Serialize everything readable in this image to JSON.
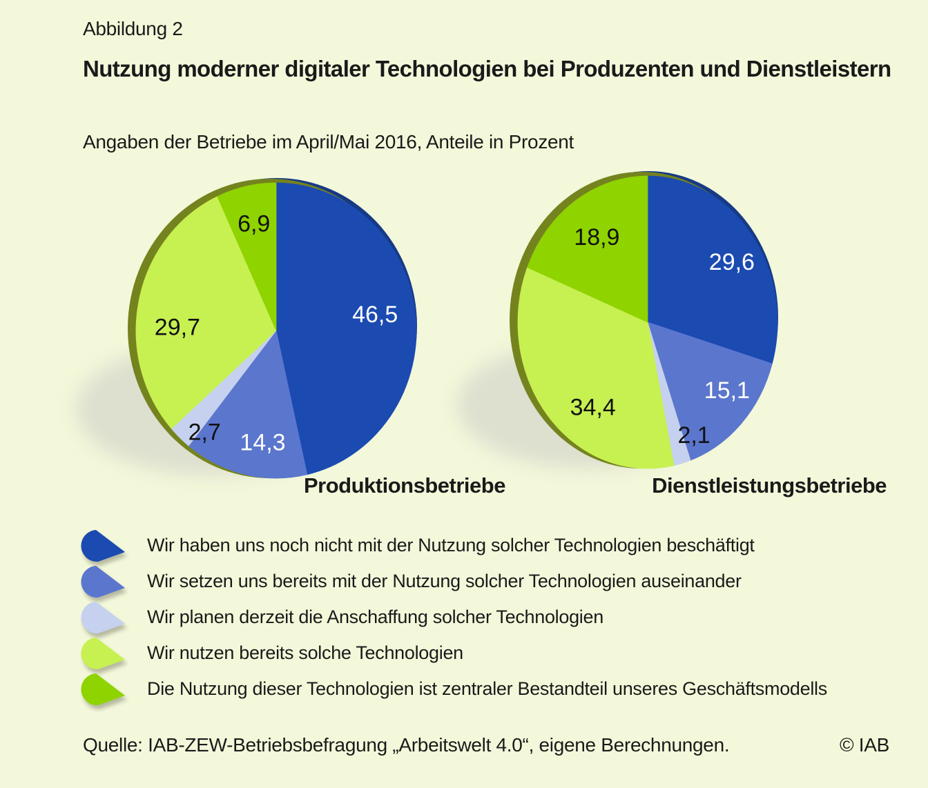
{
  "figure": {
    "label": "Abbildung 2",
    "title": "Nutzung moderner digitaler Technologien bei Produzenten und Dienstleistern",
    "subtitle": "Angaben der Betriebe im April/Mai 2016, Anteile in Prozent",
    "source": "Quelle: IAB-ZEW-Betriebsbefragung „Arbeitswelt 4.0“, eigene Berechnungen.",
    "copyright": "© IAB"
  },
  "colors": {
    "background": "#f3f8da",
    "rim_olive": "#75831f",
    "rim_navy": "#173a85",
    "shadow": "#cfcfc8",
    "text": "#1a1a1a"
  },
  "chart_data": {
    "type": "pie",
    "unit": "Prozent",
    "legend_position": "bottom",
    "categories": [
      "Wir haben uns noch nicht mit der Nutzung solcher Technologien beschäftigt",
      "Wir setzen uns bereits mit der Nutzung solcher Technologien auseinander",
      "Wir planen derzeit die Anschaffung solcher Technologien",
      "Wir nutzen bereits solche Technologien",
      "Die Nutzung dieser Technologien ist zentraler Bestandteil unseres Geschäftsmodells"
    ],
    "colors": [
      "#1b4ab1",
      "#5b76cd",
      "#c5d1ee",
      "#c7f051",
      "#8fd300"
    ],
    "value_label_colors": [
      "#ffffff",
      "#ffffff",
      "#111111",
      "#111111",
      "#111111"
    ],
    "series": [
      {
        "name": "Produktionsbetriebe",
        "values": [
          46.5,
          14.3,
          2.7,
          29.7,
          6.9
        ],
        "value_labels": [
          "46,5",
          "14,3",
          "2,7",
          "29,7",
          "6,9"
        ]
      },
      {
        "name": "Dienstleistungsbetriebe",
        "values": [
          29.6,
          15.1,
          2.1,
          34.4,
          18.9
        ],
        "value_labels": [
          "29,6",
          "15,1",
          "2,1",
          "34,4",
          "18,9"
        ]
      }
    ]
  }
}
